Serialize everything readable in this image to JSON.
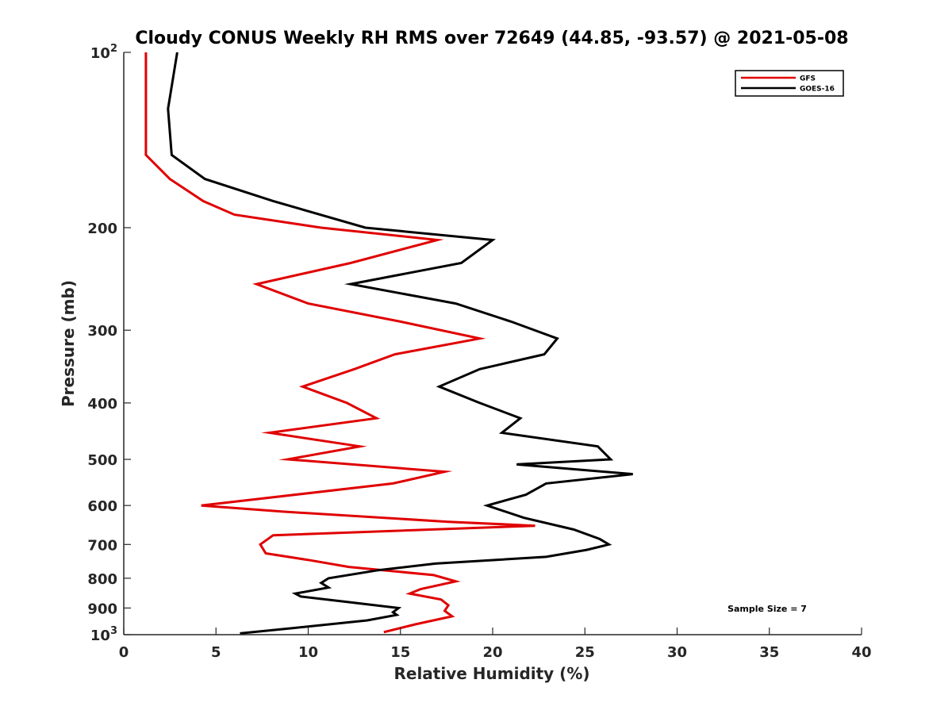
{
  "chart_data": {
    "type": "line",
    "title": "Cloudy CONUS Weekly RH RMS over 72649 (44.85, -93.57) @ 2021-05-08",
    "xlabel": "Relative Humidity (%)",
    "ylabel": "Pressure (mb)",
    "xlim": [
      0,
      40
    ],
    "ylim": [
      100,
      1000
    ],
    "yscale": "log",
    "yreversed": true,
    "grid": false,
    "legend_position": "top-right",
    "x_ticks": [
      "0",
      "5",
      "10",
      "15",
      "20",
      "25",
      "30",
      "35",
      "40"
    ],
    "y_ticks": [
      {
        "value": 100,
        "base": "10",
        "exp": "2"
      },
      {
        "value": 200,
        "label": "200"
      },
      {
        "value": 300,
        "label": "300"
      },
      {
        "value": 400,
        "label": "400"
      },
      {
        "value": 500,
        "label": "500"
      },
      {
        "value": 600,
        "label": "600"
      },
      {
        "value": 700,
        "label": "700"
      },
      {
        "value": 800,
        "label": "800"
      },
      {
        "value": 900,
        "label": "900"
      },
      {
        "value": 1000,
        "base": "10",
        "exp": "3"
      }
    ],
    "series": [
      {
        "name": "GFS",
        "color": "#e00000",
        "points": [
          [
            1.2,
            100
          ],
          [
            1.2,
            150
          ],
          [
            2.5,
            165
          ],
          [
            4.3,
            180
          ],
          [
            6.0,
            190
          ],
          [
            10.7,
            200
          ],
          [
            17.0,
            210
          ],
          [
            12.3,
            230
          ],
          [
            7.2,
            250
          ],
          [
            10.0,
            270
          ],
          [
            15.0,
            290
          ],
          [
            19.3,
            310
          ],
          [
            14.7,
            330
          ],
          [
            12.5,
            350
          ],
          [
            9.7,
            375
          ],
          [
            12.1,
            400
          ],
          [
            13.7,
            425
          ],
          [
            7.9,
            450
          ],
          [
            12.8,
            475
          ],
          [
            8.9,
            500
          ],
          [
            17.4,
            525
          ],
          [
            14.6,
            550
          ],
          [
            4.2,
            600
          ],
          [
            8.7,
            615
          ],
          [
            17.6,
            640
          ],
          [
            22.3,
            650
          ],
          [
            8.1,
            675
          ],
          [
            7.4,
            700
          ],
          [
            7.7,
            725
          ],
          [
            10.1,
            745
          ],
          [
            12.2,
            765
          ],
          [
            16.8,
            790
          ],
          [
            18.0,
            810
          ],
          [
            16.1,
            835
          ],
          [
            15.5,
            850
          ],
          [
            17.2,
            870
          ],
          [
            17.6,
            890
          ],
          [
            17.4,
            910
          ],
          [
            17.8,
            930
          ],
          [
            15.8,
            960
          ],
          [
            14.1,
            990
          ]
        ]
      },
      {
        "name": "GOES-16",
        "color": "#000000",
        "points": [
          [
            2.9,
            100
          ],
          [
            2.4,
            125
          ],
          [
            2.6,
            150
          ],
          [
            4.4,
            165
          ],
          [
            8.1,
            180
          ],
          [
            13.1,
            200
          ],
          [
            20.0,
            210
          ],
          [
            18.3,
            230
          ],
          [
            12.3,
            250
          ],
          [
            18.0,
            270
          ],
          [
            21.0,
            290
          ],
          [
            23.5,
            310
          ],
          [
            22.8,
            330
          ],
          [
            19.3,
            350
          ],
          [
            17.1,
            375
          ],
          [
            19.3,
            400
          ],
          [
            21.5,
            425
          ],
          [
            20.5,
            450
          ],
          [
            25.7,
            475
          ],
          [
            26.4,
            500
          ],
          [
            21.3,
            510
          ],
          [
            27.6,
            530
          ],
          [
            22.9,
            550
          ],
          [
            21.8,
            575
          ],
          [
            19.7,
            600
          ],
          [
            21.7,
            630
          ],
          [
            24.4,
            660
          ],
          [
            25.8,
            685
          ],
          [
            26.3,
            700
          ],
          [
            25.1,
            715
          ],
          [
            22.9,
            735
          ],
          [
            16.9,
            755
          ],
          [
            13.8,
            775
          ],
          [
            11.1,
            800
          ],
          [
            10.7,
            815
          ],
          [
            11.1,
            830
          ],
          [
            9.3,
            850
          ],
          [
            9.6,
            860
          ],
          [
            12.3,
            880
          ],
          [
            14.9,
            900
          ],
          [
            14.6,
            915
          ],
          [
            14.8,
            925
          ],
          [
            13.2,
            945
          ],
          [
            9.1,
            975
          ],
          [
            6.3,
            995
          ]
        ]
      }
    ],
    "annotations": [
      {
        "text": "Sample Size = 7",
        "position": "bottom-right"
      }
    ]
  }
}
